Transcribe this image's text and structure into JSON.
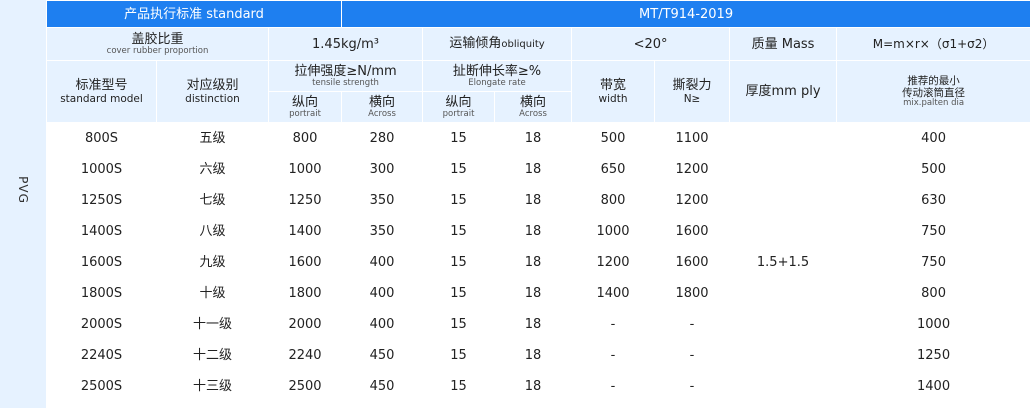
{
  "side_label": "PVG",
  "header": {
    "standard_label": "产品执行标准 standard",
    "standard_value": "MT/T914-2019"
  },
  "row2": {
    "cover_label": "盖胶比重",
    "cover_sub": "cover rubber proportion",
    "cover_value": "1.45kg/m³",
    "obliquity_label": "运输倾角",
    "obliquity_sub": "obliquity",
    "obliquity_value": "<20°",
    "mass_label": "质量 Mass",
    "mass_formula": "M=m×r×（σ1+σ2）"
  },
  "columns": {
    "model": "标准型号",
    "model_en": "standard model",
    "distinction": "对应级别",
    "distinction_en": "distinction",
    "tensile": "拉伸强度≥N/mm",
    "tensile_en": "tensile strength",
    "elong": "扯断伸长率≥%",
    "elong_en": "Elongate rate",
    "portrait": "纵向",
    "portrait_en": "portrait",
    "across": "横向",
    "across_en": "Across",
    "width": "带宽",
    "width_en": "width",
    "tear": "撕裂力",
    "tear_en": "N≥",
    "thickness": "厚度mm ply",
    "pulley": "推荐的最小",
    "pulley2": "传动滚筒直径",
    "pulley_en": "mix.palten dia"
  },
  "thickness_value": "1.5+1.5",
  "rows": [
    {
      "model": "800S",
      "grade": "五级",
      "tp": "800",
      "ta": "280",
      "ep": "15",
      "ea": "18",
      "width": "500",
      "tear": "1100",
      "pulley": "400"
    },
    {
      "model": "1000S",
      "grade": "六级",
      "tp": "1000",
      "ta": "300",
      "ep": "15",
      "ea": "18",
      "width": "650",
      "tear": "1200",
      "pulley": "500"
    },
    {
      "model": "1250S",
      "grade": "七级",
      "tp": "1250",
      "ta": "350",
      "ep": "15",
      "ea": "18",
      "width": "800",
      "tear": "1200",
      "pulley": "630"
    },
    {
      "model": "1400S",
      "grade": "八级",
      "tp": "1400",
      "ta": "350",
      "ep": "15",
      "ea": "18",
      "width": "1000",
      "tear": "1600",
      "pulley": "750"
    },
    {
      "model": "1600S",
      "grade": "九级",
      "tp": "1600",
      "ta": "400",
      "ep": "15",
      "ea": "18",
      "width": "1200",
      "tear": "1600",
      "pulley": "750"
    },
    {
      "model": "1800S",
      "grade": "十级",
      "tp": "1800",
      "ta": "400",
      "ep": "15",
      "ea": "18",
      "width": "1400",
      "tear": "1800",
      "pulley": "800"
    },
    {
      "model": "2000S",
      "grade": "十一级",
      "tp": "2000",
      "ta": "400",
      "ep": "15",
      "ea": "18",
      "width": "-",
      "tear": "-",
      "pulley": "1000"
    },
    {
      "model": "2240S",
      "grade": "十二级",
      "tp": "2240",
      "ta": "450",
      "ep": "15",
      "ea": "18",
      "width": "-",
      "tear": "-",
      "pulley": "1250"
    },
    {
      "model": "2500S",
      "grade": "十三级",
      "tp": "2500",
      "ta": "450",
      "ep": "15",
      "ea": "18",
      "width": "-",
      "tear": "-",
      "pulley": "1400"
    }
  ],
  "colors": {
    "header_blue": "#1e7ff0",
    "light_blue": "#e6f2ff"
  }
}
